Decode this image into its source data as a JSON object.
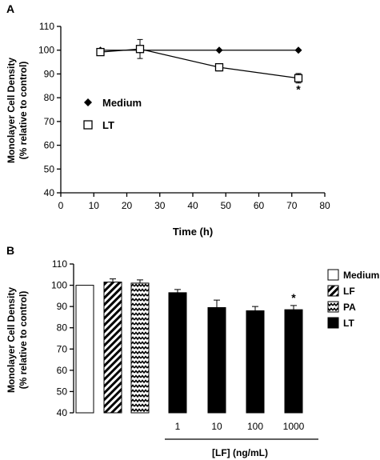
{
  "chart_data": [
    {
      "panel_label": "A",
      "type": "line",
      "xlabel": "Time (h)",
      "ylabel_line1": "Monolayer Cell Density",
      "ylabel_line2": "(% relative to control)",
      "xlim": [
        0,
        80
      ],
      "ylim": [
        40,
        110
      ],
      "x_ticks": [
        0,
        10,
        20,
        30,
        40,
        50,
        60,
        70,
        80
      ],
      "y_ticks": [
        40,
        50,
        60,
        70,
        80,
        90,
        100,
        110
      ],
      "grid": false,
      "legend_position": "left-middle",
      "series": [
        {
          "name": "Medium",
          "marker": "filled-diamond",
          "color": "#000000",
          "x": [
            12,
            24,
            48,
            72
          ],
          "y": [
            100,
            100,
            100,
            100
          ],
          "error": [
            0,
            0,
            0,
            0
          ]
        },
        {
          "name": "LT",
          "marker": "open-square",
          "color": "#000000",
          "x": [
            12,
            24,
            48,
            72
          ],
          "y": [
            99.2,
            100.5,
            92.8,
            88.2
          ],
          "error": [
            1.2,
            4.0,
            1.5,
            2.0
          ]
        }
      ],
      "annotations": [
        {
          "text": "*",
          "x": 72,
          "y": 83.2
        }
      ]
    },
    {
      "panel_label": "B",
      "type": "bar",
      "ylabel_line1": "Monolayer Cell Density",
      "ylabel_line2": "(% relative to control)",
      "ylim": [
        40,
        110
      ],
      "y_ticks": [
        40,
        50,
        60,
        70,
        80,
        90,
        100,
        110
      ],
      "xlabel": "[LF] (ng/mL)",
      "grid": false,
      "legend_position": "right",
      "legend": [
        {
          "name": "Medium",
          "pattern": "open"
        },
        {
          "name": "LF",
          "pattern": "diagonal-stripes"
        },
        {
          "name": "PA",
          "pattern": "zigzag"
        },
        {
          "name": "LT",
          "pattern": "solid"
        }
      ],
      "bars": [
        {
          "group": "Medium",
          "category": "",
          "value": 100.0,
          "error": 0
        },
        {
          "group": "LF",
          "category": "",
          "value": 101.5,
          "error": 1.5
        },
        {
          "group": "PA",
          "category": "",
          "value": 101.0,
          "error": 1.5
        },
        {
          "group": "LT",
          "category": "1",
          "value": 96.5,
          "error": 1.5
        },
        {
          "group": "LT",
          "category": "10",
          "value": 89.5,
          "error": 3.5
        },
        {
          "group": "LT",
          "category": "100",
          "value": 88.0,
          "error": 2.0
        },
        {
          "group": "LT",
          "category": "1000",
          "value": 88.5,
          "error": 2.0
        }
      ],
      "annotations": [
        {
          "text": "*",
          "bar_index": 6
        }
      ]
    }
  ]
}
